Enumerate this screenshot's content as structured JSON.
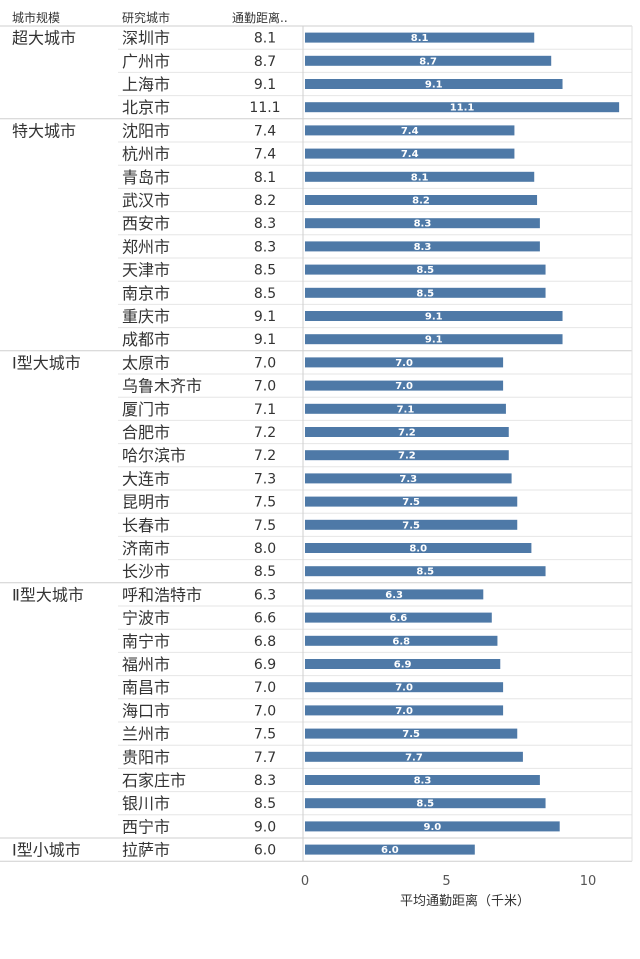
{
  "headers": {
    "group": "城市规模",
    "city": "研究城市",
    "value": "通勤距离.."
  },
  "chart_data": {
    "type": "bar",
    "orientation": "horizontal",
    "xlabel": "平均通勤距离（千米）",
    "xlim": [
      0,
      11.5
    ],
    "xticks": [
      0,
      5,
      10
    ],
    "color": "#4e79a7",
    "groups": [
      {
        "name": "超大城市",
        "rows": [
          {
            "city": "深圳市",
            "value": 8.1
          },
          {
            "city": "广州市",
            "value": 8.7
          },
          {
            "city": "上海市",
            "value": 9.1
          },
          {
            "city": "北京市",
            "value": 11.1
          }
        ]
      },
      {
        "name": "特大城市",
        "rows": [
          {
            "city": "沈阳市",
            "value": 7.4
          },
          {
            "city": "杭州市",
            "value": 7.4
          },
          {
            "city": "青岛市",
            "value": 8.1
          },
          {
            "city": "武汉市",
            "value": 8.2
          },
          {
            "city": "西安市",
            "value": 8.3
          },
          {
            "city": "郑州市",
            "value": 8.3
          },
          {
            "city": "天津市",
            "value": 8.5
          },
          {
            "city": "南京市",
            "value": 8.5
          },
          {
            "city": "重庆市",
            "value": 9.1
          },
          {
            "city": "成都市",
            "value": 9.1
          }
        ]
      },
      {
        "name": "Ⅰ型大城市",
        "rows": [
          {
            "city": "太原市",
            "value": 7.0
          },
          {
            "city": "乌鲁木齐市",
            "value": 7.0
          },
          {
            "city": "厦门市",
            "value": 7.1
          },
          {
            "city": "合肥市",
            "value": 7.2
          },
          {
            "city": "哈尔滨市",
            "value": 7.2
          },
          {
            "city": "大连市",
            "value": 7.3
          },
          {
            "city": "昆明市",
            "value": 7.5
          },
          {
            "city": "长春市",
            "value": 7.5
          },
          {
            "city": "济南市",
            "value": 8.0
          },
          {
            "city": "长沙市",
            "value": 8.5
          }
        ]
      },
      {
        "name": "Ⅱ型大城市",
        "rows": [
          {
            "city": "呼和浩特市",
            "value": 6.3
          },
          {
            "city": "宁波市",
            "value": 6.6
          },
          {
            "city": "南宁市",
            "value": 6.8
          },
          {
            "city": "福州市",
            "value": 6.9
          },
          {
            "city": "南昌市",
            "value": 7.0
          },
          {
            "city": "海口市",
            "value": 7.0
          },
          {
            "city": "兰州市",
            "value": 7.5
          },
          {
            "city": "贵阳市",
            "value": 7.7
          },
          {
            "city": "石家庄市",
            "value": 8.3
          },
          {
            "city": "银川市",
            "value": 8.5
          },
          {
            "city": "西宁市",
            "value": 9.0
          }
        ]
      },
      {
        "name": "Ⅰ型小城市",
        "rows": [
          {
            "city": "拉萨市",
            "value": 6.0
          }
        ]
      }
    ]
  }
}
